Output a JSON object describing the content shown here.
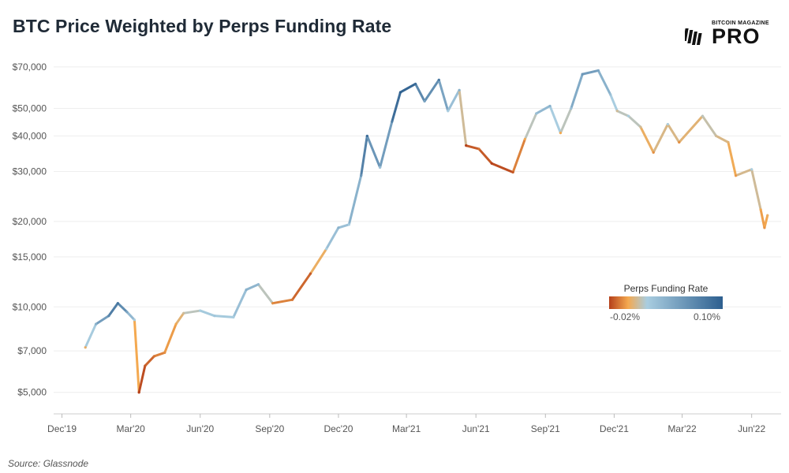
{
  "header": {
    "title": "BTC Price Weighted by Perps Funding Rate",
    "logo_top": "BITCOIN MAGAZINE",
    "logo_main": "PRO"
  },
  "footer": {
    "source": "Source: Glassnode"
  },
  "colors": {
    "funding_negative": "#b5401a",
    "funding_zero": "#f4a950",
    "funding_neutral": "#a9cde0",
    "funding_positive": "#2d5f8f",
    "grid": "#eeeeee"
  },
  "chart_data": {
    "type": "line",
    "scale": "log",
    "title": "BTC Price Weighted by Perps Funding Rate",
    "ylim": [
      4200,
      78000
    ],
    "y_ticks": [
      {
        "value": 70000,
        "label": "$70,000"
      },
      {
        "value": 50000,
        "label": "$50,000"
      },
      {
        "value": 40000,
        "label": "$40,000"
      },
      {
        "value": 30000,
        "label": "$30,000"
      },
      {
        "value": 20000,
        "label": "$20,000"
      },
      {
        "value": 15000,
        "label": "$15,000"
      },
      {
        "value": 10000,
        "label": "$10,000"
      },
      {
        "value": 7000,
        "label": "$7,000"
      },
      {
        "value": 5000,
        "label": "$5,000"
      }
    ],
    "xlim": [
      "2019-11-20",
      "2022-07-10"
    ],
    "x_ticks": [
      {
        "date": "2019-12-01",
        "label": "Dec'19"
      },
      {
        "date": "2020-03-01",
        "label": "Mar'20"
      },
      {
        "date": "2020-06-01",
        "label": "Jun'20"
      },
      {
        "date": "2020-09-01",
        "label": "Sep'20"
      },
      {
        "date": "2020-12-01",
        "label": "Dec'20"
      },
      {
        "date": "2021-03-01",
        "label": "Mar'21"
      },
      {
        "date": "2021-06-01",
        "label": "Jun'21"
      },
      {
        "date": "2021-09-01",
        "label": "Sep'21"
      },
      {
        "date": "2021-12-01",
        "label": "Dec'21"
      },
      {
        "date": "2022-03-01",
        "label": "Mar'22"
      },
      {
        "date": "2022-06-01",
        "label": "Jun'22"
      }
    ],
    "grid": true,
    "legend": {
      "title": "Perps Funding Rate",
      "min_label": "-0.02%",
      "max_label": "0.10%",
      "placement": "right-middle"
    },
    "series": [
      {
        "points": [
          {
            "date": "2020-01-01",
            "price": 7200,
            "funding": 0.003
          },
          {
            "date": "2020-01-15",
            "price": 8700,
            "funding": 0.04
          },
          {
            "date": "2020-02-01",
            "price": 9300,
            "funding": 0.07
          },
          {
            "date": "2020-02-13",
            "price": 10300,
            "funding": 0.085
          },
          {
            "date": "2020-02-25",
            "price": 9600,
            "funding": 0.05
          },
          {
            "date": "2020-03-06",
            "price": 9000,
            "funding": 0.02
          },
          {
            "date": "2020-03-12",
            "price": 5000,
            "funding": -0.02
          },
          {
            "date": "2020-03-20",
            "price": 6200,
            "funding": -0.015
          },
          {
            "date": "2020-04-01",
            "price": 6700,
            "funding": -0.01
          },
          {
            "date": "2020-04-15",
            "price": 6900,
            "funding": -0.005
          },
          {
            "date": "2020-04-30",
            "price": 8700,
            "funding": 0.0
          },
          {
            "date": "2020-05-10",
            "price": 9500,
            "funding": 0.01
          },
          {
            "date": "2020-06-01",
            "price": 9700,
            "funding": 0.02
          },
          {
            "date": "2020-06-20",
            "price": 9300,
            "funding": 0.025
          },
          {
            "date": "2020-07-15",
            "price": 9200,
            "funding": 0.02
          },
          {
            "date": "2020-08-01",
            "price": 11500,
            "funding": 0.04
          },
          {
            "date": "2020-08-17",
            "price": 12000,
            "funding": 0.035
          },
          {
            "date": "2020-09-05",
            "price": 10300,
            "funding": -0.005
          },
          {
            "date": "2020-10-01",
            "price": 10600,
            "funding": -0.01
          },
          {
            "date": "2020-10-25",
            "price": 13100,
            "funding": -0.015
          },
          {
            "date": "2020-11-15",
            "price": 16000,
            "funding": 0.02
          },
          {
            "date": "2020-12-01",
            "price": 19000,
            "funding": 0.04
          },
          {
            "date": "2020-12-15",
            "price": 19500,
            "funding": 0.02
          },
          {
            "date": "2020-12-31",
            "price": 29000,
            "funding": 0.06
          },
          {
            "date": "2021-01-08",
            "price": 40000,
            "funding": 0.09
          },
          {
            "date": "2021-01-25",
            "price": 31000,
            "funding": 0.03
          },
          {
            "date": "2021-02-10",
            "price": 45000,
            "funding": 0.08
          },
          {
            "date": "2021-02-21",
            "price": 57000,
            "funding": 0.1
          },
          {
            "date": "2021-03-13",
            "price": 61000,
            "funding": 0.09
          },
          {
            "date": "2021-03-25",
            "price": 53000,
            "funding": 0.05
          },
          {
            "date": "2021-04-13",
            "price": 63000,
            "funding": 0.08
          },
          {
            "date": "2021-04-25",
            "price": 49000,
            "funding": 0.02
          },
          {
            "date": "2021-05-10",
            "price": 58000,
            "funding": 0.04
          },
          {
            "date": "2021-05-19",
            "price": 37000,
            "funding": -0.02
          },
          {
            "date": "2021-06-05",
            "price": 36000,
            "funding": -0.01
          },
          {
            "date": "2021-06-22",
            "price": 32000,
            "funding": -0.02
          },
          {
            "date": "2021-07-20",
            "price": 29800,
            "funding": -0.015
          },
          {
            "date": "2021-08-05",
            "price": 39000,
            "funding": 0.0
          },
          {
            "date": "2021-08-20",
            "price": 48000,
            "funding": 0.03
          },
          {
            "date": "2021-09-07",
            "price": 51000,
            "funding": 0.04
          },
          {
            "date": "2021-09-21",
            "price": 41000,
            "funding": 0.0
          },
          {
            "date": "2021-10-05",
            "price": 50000,
            "funding": 0.03
          },
          {
            "date": "2021-10-20",
            "price": 66000,
            "funding": 0.06
          },
          {
            "date": "2021-11-10",
            "price": 68000,
            "funding": 0.05
          },
          {
            "date": "2021-11-26",
            "price": 56000,
            "funding": 0.03
          },
          {
            "date": "2021-12-05",
            "price": 49000,
            "funding": 0.01
          },
          {
            "date": "2021-12-20",
            "price": 47000,
            "funding": 0.02
          },
          {
            "date": "2022-01-05",
            "price": 43000,
            "funding": 0.01
          },
          {
            "date": "2022-01-22",
            "price": 35000,
            "funding": -0.005
          },
          {
            "date": "2022-02-10",
            "price": 44000,
            "funding": 0.02
          },
          {
            "date": "2022-02-25",
            "price": 38000,
            "funding": -0.005
          },
          {
            "date": "2022-03-28",
            "price": 47000,
            "funding": 0.015
          },
          {
            "date": "2022-04-15",
            "price": 40000,
            "funding": 0.01
          },
          {
            "date": "2022-05-01",
            "price": 38000,
            "funding": 0.005
          },
          {
            "date": "2022-05-11",
            "price": 29000,
            "funding": -0.003
          },
          {
            "date": "2022-06-01",
            "price": 30500,
            "funding": 0.02
          },
          {
            "date": "2022-06-13",
            "price": 22000,
            "funding": 0.0
          },
          {
            "date": "2022-06-18",
            "price": 19000,
            "funding": -0.004
          },
          {
            "date": "2022-06-22",
            "price": 21000,
            "funding": 0.003
          }
        ]
      }
    ]
  }
}
